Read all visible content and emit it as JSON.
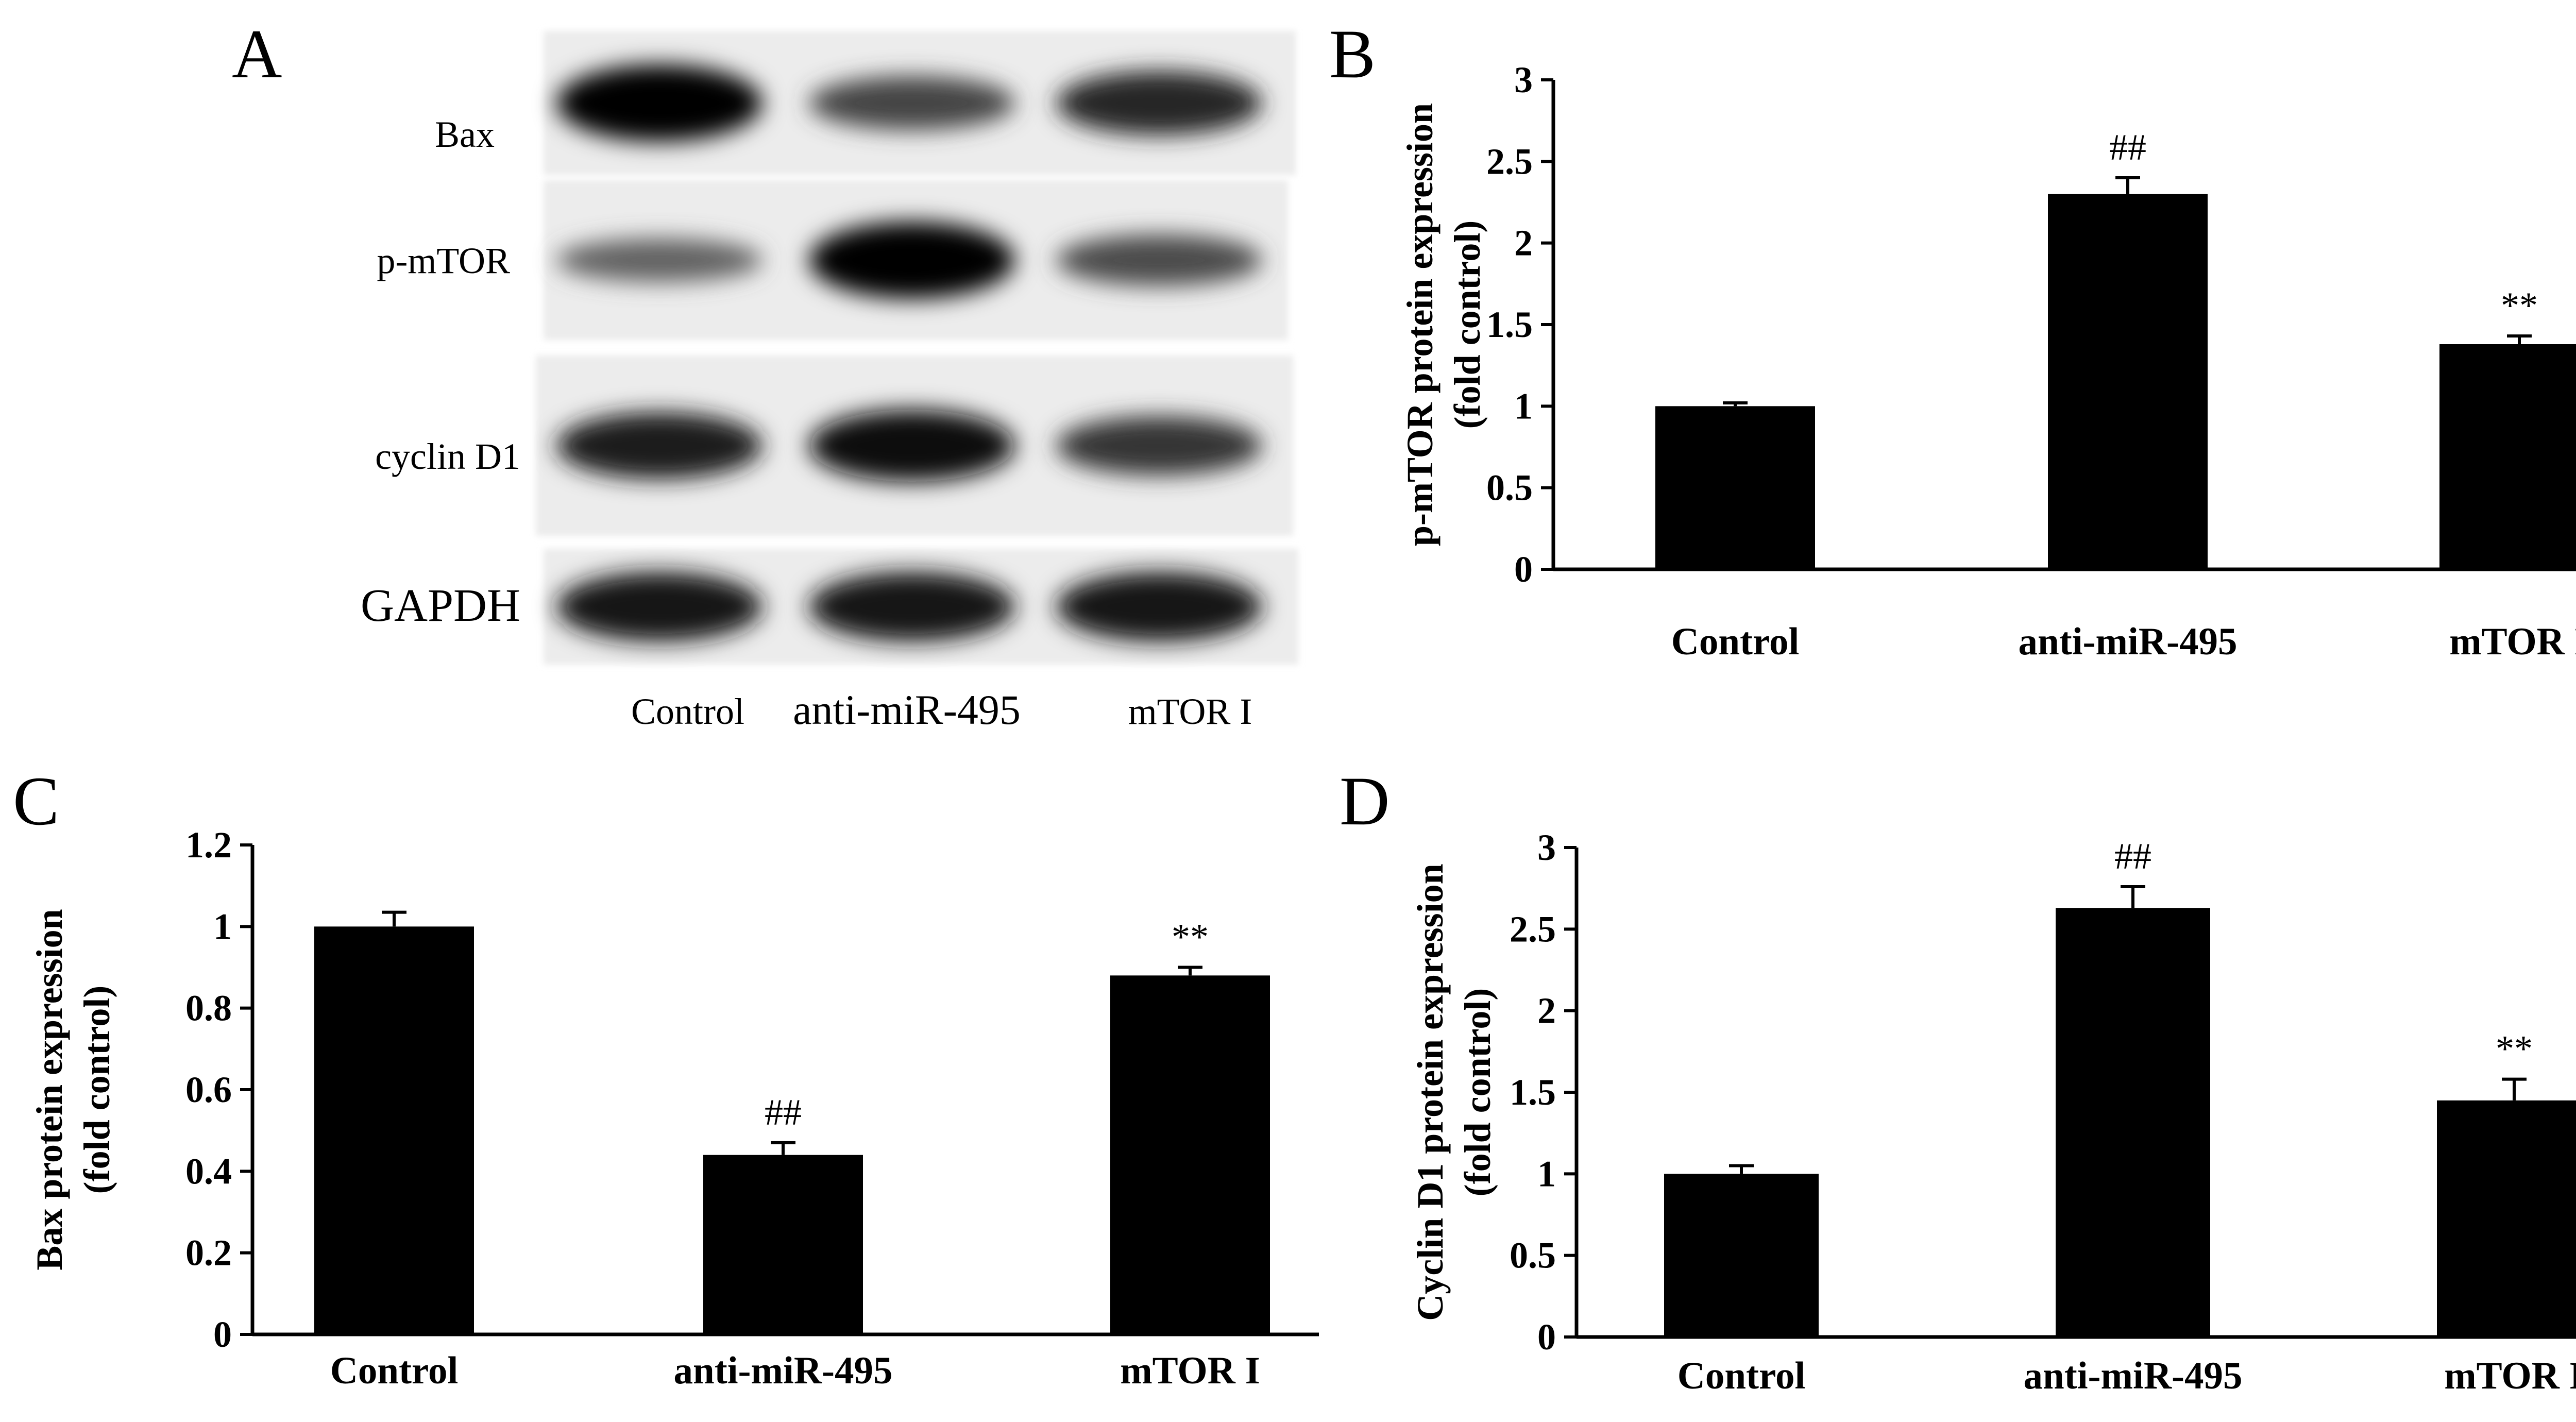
{
  "panel_letters": [
    "A",
    "B",
    "C",
    "D"
  ],
  "blot": {
    "rows": [
      "Bax",
      "p-mTOR",
      "cyclin D1",
      "GAPDH"
    ],
    "lanes": [
      "Control",
      "anti-miR-495",
      "mTOR I"
    ],
    "band_intensity": {
      "Bax": [
        1.0,
        0.55,
        0.75
      ],
      "p-mTOR": [
        0.35,
        1.0,
        0.5
      ],
      "cyclin D1": [
        0.8,
        0.9,
        0.65
      ],
      "GAPDH": [
        0.85,
        0.85,
        0.85
      ]
    }
  },
  "chart_data": [
    {
      "type": "bar",
      "panel": "B",
      "categories": [
        "Control",
        "anti-miR-495",
        "mTOR I"
      ],
      "values": [
        1.0,
        2.3,
        1.38
      ],
      "errors": [
        0.02,
        0.1,
        0.05
      ],
      "annotations": [
        "",
        "##",
        "**"
      ],
      "ylabel_lines": [
        "p-mTOR protein expression",
        "(fold control)"
      ],
      "ylim": [
        0,
        3
      ],
      "yticks": [
        0,
        0.5,
        1,
        1.5,
        2,
        2.5,
        3
      ],
      "ytick_labels": [
        "0",
        "0.5",
        "1",
        "1.5",
        "2",
        "2.5",
        "3"
      ],
      "bar_color": "#000000"
    },
    {
      "type": "bar",
      "panel": "C",
      "categories": [
        "Control",
        "anti-miR-495",
        "mTOR I"
      ],
      "values": [
        1.0,
        0.44,
        0.88
      ],
      "errors": [
        0.035,
        0.03,
        0.02
      ],
      "annotations": [
        "",
        "##",
        "**"
      ],
      "ylabel_lines": [
        "Bax protein expression",
        "(fold control)"
      ],
      "ylim": [
        0,
        1.2
      ],
      "yticks": [
        0,
        0.2,
        0.4,
        0.6,
        0.8,
        1,
        1.2
      ],
      "ytick_labels": [
        "0",
        "0.2",
        "0.4",
        "0.6",
        "0.8",
        "1",
        "1.2"
      ],
      "bar_color": "#000000"
    },
    {
      "type": "bar",
      "panel": "D",
      "categories": [
        "Control",
        "anti-miR-495",
        "mTOR I"
      ],
      "values": [
        1.0,
        2.63,
        1.45
      ],
      "errors": [
        0.05,
        0.13,
        0.13
      ],
      "annotations": [
        "",
        "##",
        "**"
      ],
      "ylabel_lines": [
        "Cyclin D1 protein expression",
        "(fold control)"
      ],
      "ylim": [
        0,
        3
      ],
      "yticks": [
        0,
        0.5,
        1,
        1.5,
        2,
        2.5,
        3
      ],
      "ytick_labels": [
        "0",
        "0.5",
        "1",
        "1.5",
        "2",
        "2.5",
        "3"
      ],
      "bar_color": "#000000"
    }
  ]
}
